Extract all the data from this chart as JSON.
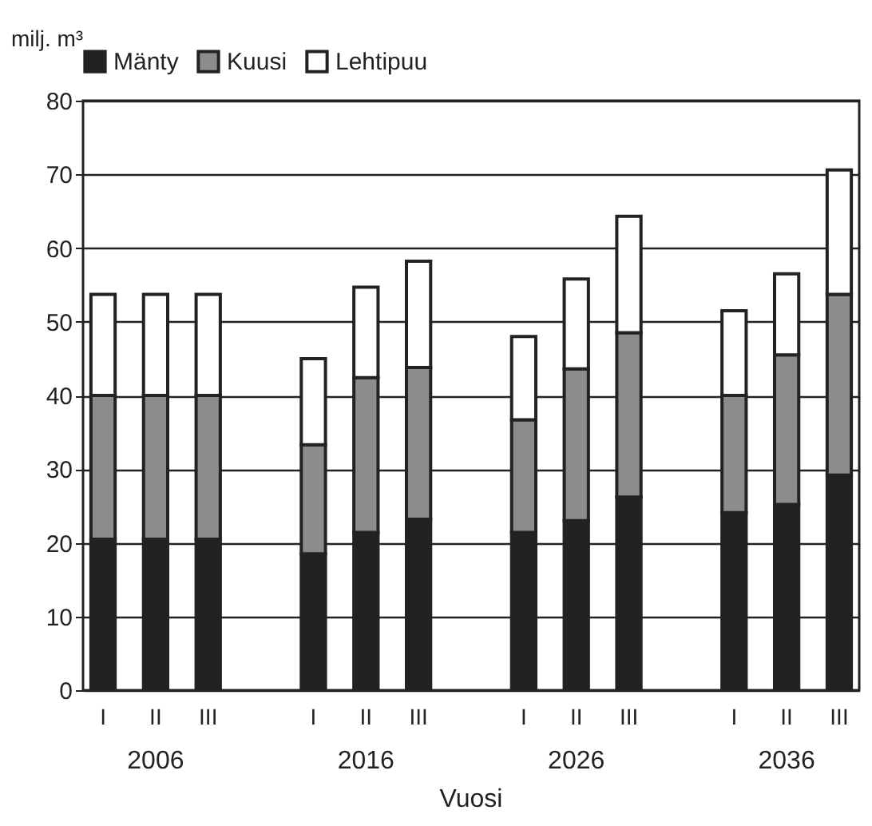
{
  "chart_data": {
    "type": "bar",
    "stacked": true,
    "ylabel": "milj. m³",
    "xlabel": "Vuosi",
    "legend": "top",
    "grid": "y",
    "categories": [
      "I",
      "II",
      "III",
      null,
      "I",
      "II",
      "III",
      null,
      "I",
      "II",
      "III",
      null,
      "I",
      "II",
      "III"
    ],
    "annotations": [
      "2006",
      "2016",
      "2026",
      "2036"
    ],
    "ylim": [
      0,
      80
    ],
    "yticks": [
      0,
      10,
      20,
      30,
      40,
      50,
      60,
      70,
      80
    ],
    "series": [
      {
        "name": "Mänty",
        "color": "#222222",
        "values": [
          20.5,
          20.5,
          20.5,
          null,
          18.5,
          21.4,
          23.2,
          null,
          21.4,
          23.0,
          26.2,
          null,
          24.1,
          25.2,
          29.2
        ]
      },
      {
        "name": "Kuusi",
        "color": "#8c8c8c",
        "values": [
          19.5,
          19.5,
          19.5,
          null,
          14.8,
          21.0,
          20.6,
          null,
          15.3,
          20.6,
          22.3,
          null,
          15.9,
          20.3,
          24.5
        ]
      },
      {
        "name": "Lehtipuu",
        "color": "#ffffff",
        "values": [
          13.7,
          13.7,
          13.7,
          null,
          11.7,
          12.3,
          14.4,
          null,
          11.3,
          12.2,
          15.8,
          null,
          11.5,
          11.0,
          16.9
        ]
      }
    ]
  }
}
